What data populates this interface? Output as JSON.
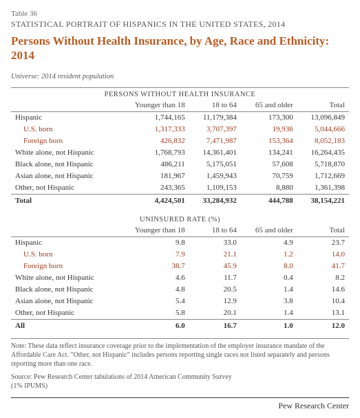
{
  "header": {
    "table_num": "Table 36",
    "doc_title": "STATISTICAL PORTRAIT OF HISPANICS IN THE UNITED STATES, 2014",
    "main_title": "Persons Without Health Insurance, by Age, Race and Ethnicity: 2014",
    "universe": "Universe: 2014 resident population"
  },
  "columns": {
    "c1": "Younger than 18",
    "c2": "18 to 64",
    "c3": "65 and older",
    "c4": "Total"
  },
  "section1": {
    "title": "PERSONS WITHOUT HEALTH INSURANCE",
    "rows": [
      {
        "label": "Hispanic",
        "v": [
          "1,744,165",
          "11,179,384",
          "173,300",
          "13,096,849"
        ],
        "cls": ""
      },
      {
        "label": "U.S. born",
        "v": [
          "1,317,333",
          "3,707,397",
          "19,936",
          "5,044,666"
        ],
        "cls": "indent"
      },
      {
        "label": "Foreign born",
        "v": [
          "426,832",
          "7,471,987",
          "153,364",
          "8,052,183"
        ],
        "cls": "indent"
      },
      {
        "label": "White alone, not Hispanic",
        "v": [
          "1,768,793",
          "14,361,401",
          "134,241",
          "16,264,435"
        ],
        "cls": ""
      },
      {
        "label": "Black alone, not Hispanic",
        "v": [
          "486,211",
          "5,175,051",
          "57,608",
          "5,718,870"
        ],
        "cls": ""
      },
      {
        "label": "Asian alone, not Hispanic",
        "v": [
          "181,967",
          "1,459,943",
          "70,759",
          "1,712,669"
        ],
        "cls": ""
      },
      {
        "label": "Other, not Hispanic",
        "v": [
          "243,365",
          "1,109,153",
          "8,880",
          "1,361,398"
        ],
        "cls": ""
      }
    ],
    "total": {
      "label": "Total",
      "v": [
        "4,424,501",
        "33,284,932",
        "444,788",
        "38,154,221"
      ]
    }
  },
  "section2": {
    "title": "UNINSURED RATE (%)",
    "rows": [
      {
        "label": "Hispanic",
        "v": [
          "9.8",
          "33.0",
          "4.9",
          "23.7"
        ],
        "cls": ""
      },
      {
        "label": "U.S. born",
        "v": [
          "7.9",
          "21.1",
          "1.2",
          "14.0"
        ],
        "cls": "indent"
      },
      {
        "label": "Foreign born",
        "v": [
          "38.7",
          "45.9",
          "8.0",
          "41.7"
        ],
        "cls": "indent"
      },
      {
        "label": "White alone, not Hispanic",
        "v": [
          "4.6",
          "11.7",
          "0.4",
          "8.2"
        ],
        "cls": ""
      },
      {
        "label": "Black alone, not Hispanic",
        "v": [
          "4.8",
          "20.5",
          "1.4",
          "14.6"
        ],
        "cls": ""
      },
      {
        "label": "Asian alone, not Hispanic",
        "v": [
          "5.4",
          "12.9",
          "3.8",
          "10.4"
        ],
        "cls": ""
      },
      {
        "label": "Other, not Hispanic",
        "v": [
          "5.8",
          "20.1",
          "1.4",
          "13.1"
        ],
        "cls": ""
      }
    ],
    "total": {
      "label": "All",
      "v": [
        "6.0",
        "16.7",
        "1.0",
        "12.0"
      ]
    }
  },
  "note": "Note: These data reflect insurance coverage prior to the implementation of the employer insurance mandate of the Affordable Care Act. \"Other, not Hispanic\" includes persons reporting single races not listed separately and persons reporting more than one race.",
  "source": "Source: Pew Research Center tabulations of 2014 American Community Survey",
  "source2": "(1% IPUMS)",
  "footer": "Pew Research Center"
}
